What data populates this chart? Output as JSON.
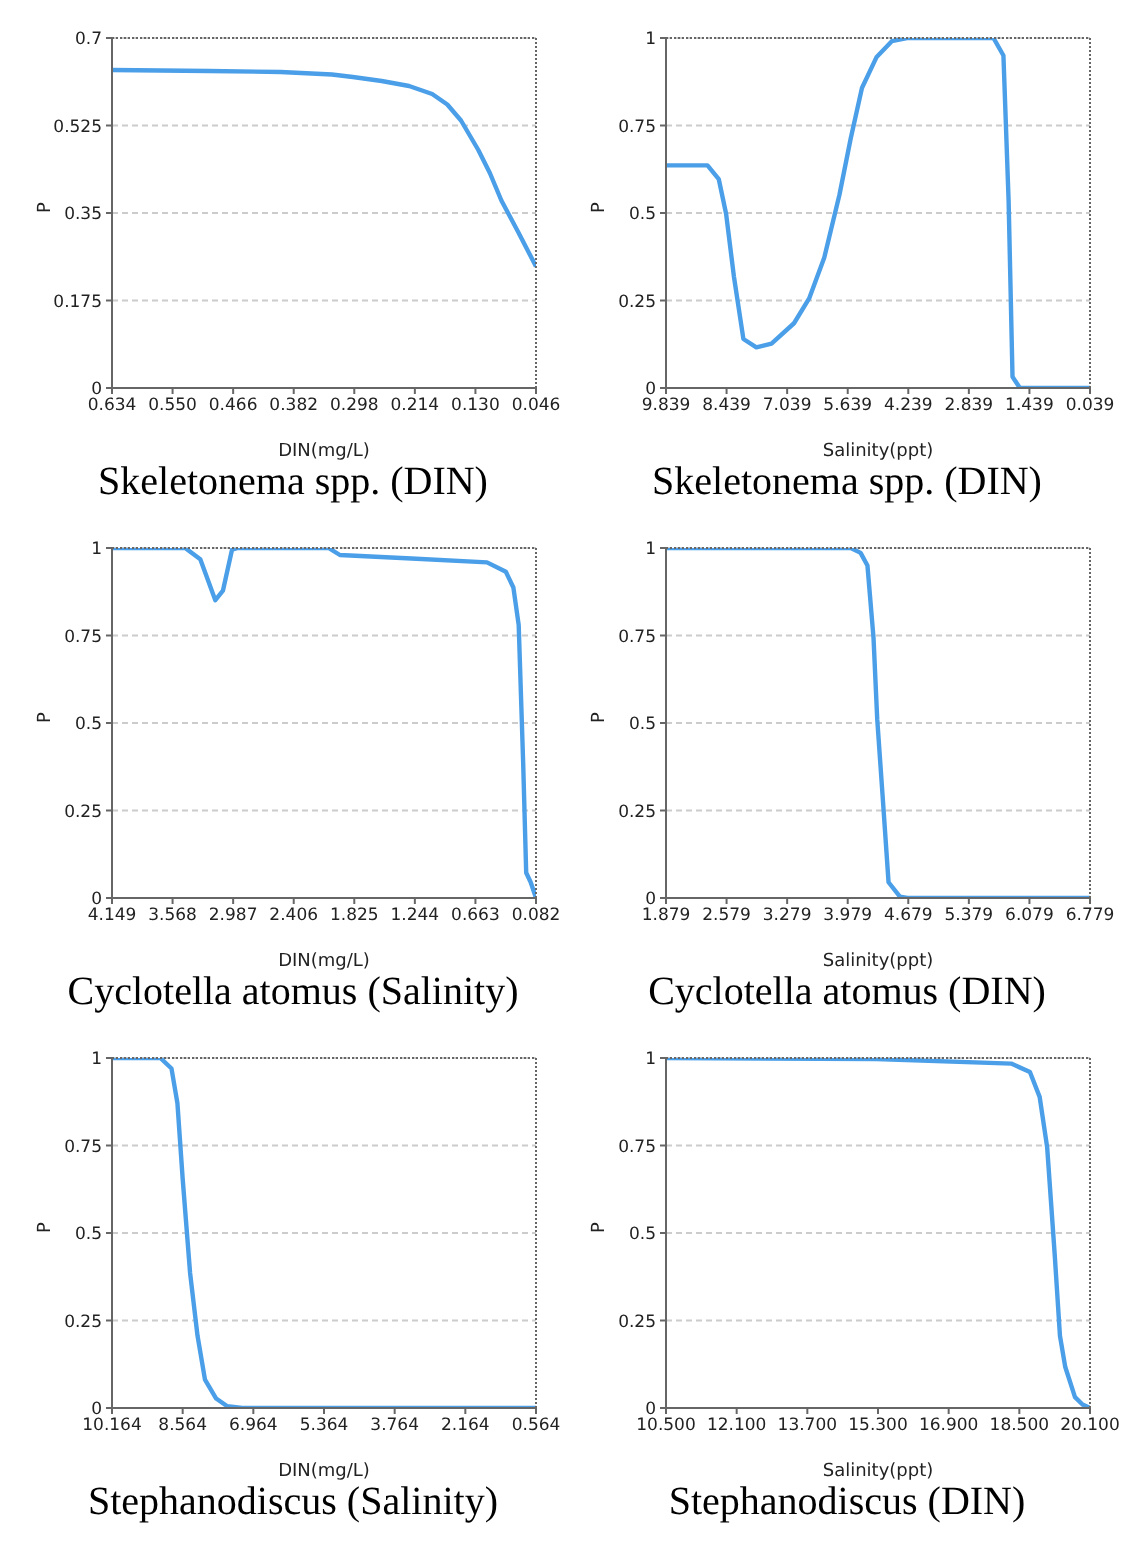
{
  "chart_data": [
    {
      "type": "line",
      "title": "Skeletonema spp. (DIN)",
      "xlabel": "DIN(mg/L)",
      "ylabel": "P",
      "color": "#4a9fe8",
      "grid": "y",
      "x": [
        0.634,
        0.5,
        0.4,
        0.329,
        0.3,
        0.26,
        0.222,
        0.19,
        0.169,
        0.15,
        0.126,
        0.11,
        0.094,
        0.07,
        0.046
      ],
      "values": [
        0.636,
        0.634,
        0.632,
        0.627,
        0.622,
        0.614,
        0.604,
        0.588,
        0.567,
        0.535,
        0.476,
        0.43,
        0.375,
        0.31,
        0.243
      ],
      "xlim": [
        0.634,
        0.046
      ],
      "xticks": [
        0.634,
        {
          "value": 0.55,
          "label": "0.550"
        },
        0.466,
        0.382,
        0.298,
        0.214,
        {
          "value": 0.13,
          "label": "0.130"
        },
        0.046
      ],
      "ylim": [
        0,
        0.7
      ],
      "yticks": [
        0,
        0.175,
        0.35,
        0.525,
        0.7
      ]
    },
    {
      "type": "line",
      "title": "Skeletonema spp. (DIN)",
      "xlabel": "Salinity(ppt)",
      "ylabel": "P",
      "color": "#4a9fe8",
      "grid": "y",
      "x": [
        9.839,
        8.88,
        8.62,
        8.45,
        8.27,
        8.05,
        7.75,
        7.4,
        6.88,
        6.53,
        6.18,
        5.83,
        5.57,
        5.31,
        4.97,
        4.62,
        4.27,
        2.27,
        2.04,
        1.92,
        1.83,
        1.66,
        0.039
      ],
      "values": [
        0.636,
        0.636,
        0.597,
        0.498,
        0.319,
        0.14,
        0.116,
        0.127,
        0.185,
        0.256,
        0.373,
        0.552,
        0.713,
        0.857,
        0.946,
        0.991,
        1,
        1,
        0.95,
        0.534,
        0.032,
        0,
        0
      ],
      "xlim": [
        9.839,
        0.039
      ],
      "xticks": [
        9.839,
        8.439,
        7.039,
        5.639,
        4.239,
        2.839,
        1.439,
        0.039
      ],
      "ylim": [
        0,
        1
      ],
      "yticks": [
        0,
        0.25,
        0.5,
        0.75,
        1
      ]
    },
    {
      "type": "line",
      "title": "Cyclotella atomus (Salinity)",
      "xlabel": "DIN(mg/L)",
      "ylabel": "P",
      "color": "#4a9fe8",
      "grid": "y",
      "x": [
        4.149,
        3.447,
        3.302,
        3.158,
        3.085,
        2.998,
        2.94,
        2.072,
        1.963,
        1.276,
        0.552,
        0.371,
        0.299,
        0.248,
        0.205,
        0.176,
        0.133,
        0.082
      ],
      "values": [
        1,
        1,
        0.968,
        0.851,
        0.878,
        0.995,
        1,
        1,
        0.98,
        0.97,
        0.959,
        0.932,
        0.887,
        0.78,
        0.385,
        0.072,
        0.045,
        0
      ],
      "xlim": [
        4.149,
        0.082
      ],
      "xticks": [
        4.149,
        3.568,
        2.987,
        2.406,
        1.825,
        1.244,
        0.663,
        0.082
      ],
      "ylim": [
        0,
        1
      ],
      "yticks": [
        0,
        0.25,
        0.5,
        0.75,
        1
      ]
    },
    {
      "type": "line",
      "title": "Cyclotella atomus (DIN)",
      "xlabel": "Salinity(ppt)",
      "ylabel": "P",
      "color": "#4a9fe8",
      "grid": "y",
      "x": [
        1.879,
        4.015,
        4.128,
        4.207,
        4.277,
        4.32,
        4.381,
        4.451,
        4.582,
        4.669,
        6.779
      ],
      "values": [
        1,
        1,
        0.986,
        0.95,
        0.744,
        0.511,
        0.296,
        0.045,
        0.004,
        0,
        0
      ],
      "xlim": [
        1.879,
        6.779
      ],
      "xticks": [
        1.879,
        2.579,
        3.279,
        3.979,
        4.679,
        5.379,
        6.079,
        6.779
      ],
      "ylim": [
        0,
        1
      ],
      "yticks": [
        0,
        0.25,
        0.5,
        0.75,
        1
      ]
    },
    {
      "type": "line",
      "title": "Stephanodiscus (Salinity)",
      "xlabel": "DIN(mg/L)",
      "ylabel": "P",
      "color": "#4a9fe8",
      "grid": "y",
      "x": [
        10.164,
        9.069,
        8.817,
        8.683,
        8.564,
        8.396,
        8.227,
        8.059,
        7.806,
        7.553,
        7.216,
        0.564
      ],
      "values": [
        1,
        1,
        0.97,
        0.871,
        0.655,
        0.386,
        0.206,
        0.081,
        0.027,
        0.005,
        0,
        0
      ],
      "xlim": [
        10.164,
        0.564
      ],
      "xticks": [
        10.164,
        8.564,
        6.964,
        5.364,
        3.764,
        2.164,
        0.564
      ],
      "ylim": [
        0,
        1
      ],
      "yticks": [
        0,
        0.25,
        0.5,
        0.75,
        1
      ]
    },
    {
      "type": "line",
      "title": "Stephanodiscus (DIN)",
      "xlabel": "Salinity(ppt)",
      "ylabel": "P",
      "color": "#4a9fe8",
      "grid": "y",
      "x": [
        10.5,
        15.258,
        18.316,
        18.74,
        18.96,
        19.13,
        19.3,
        19.42,
        19.54,
        19.76,
        19.93,
        20.1
      ],
      "values": [
        1,
        0.997,
        0.984,
        0.96,
        0.889,
        0.745,
        0.44,
        0.206,
        0.117,
        0.031,
        0.01,
        0
      ],
      "xlim": [
        10.5,
        20.1
      ],
      "xticks": [
        {
          "value": 10.5,
          "label": "10.500"
        },
        {
          "value": 12.1,
          "label": "12.100"
        },
        {
          "value": 13.7,
          "label": "13.700"
        },
        {
          "value": 15.3,
          "label": "15.300"
        },
        {
          "value": 16.9,
          "label": "16.900"
        },
        {
          "value": 18.5,
          "label": "18.500"
        },
        {
          "value": 20.1,
          "label": "20.100"
        }
      ],
      "ylim": [
        0,
        1
      ],
      "yticks": [
        0,
        0.25,
        0.5,
        0.75,
        1
      ]
    }
  ]
}
